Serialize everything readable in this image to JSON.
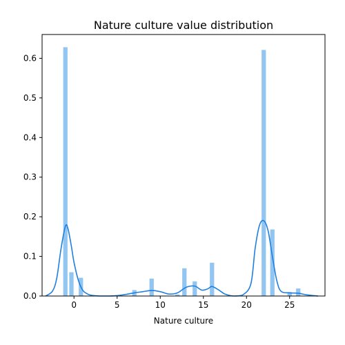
{
  "chart_data": {
    "type": "bar",
    "title": "Nature culture value distribution",
    "xlabel": "Nature culture",
    "ylabel": "",
    "xlim": [
      -3.7,
      29.1
    ],
    "ylim": [
      0,
      0.66
    ],
    "xticks": [
      0,
      5,
      10,
      15,
      20,
      25
    ],
    "yticks": [
      0.0,
      0.1,
      0.2,
      0.3,
      0.4,
      0.5,
      0.6
    ],
    "grid": false,
    "colors": {
      "bar": "#92c5f0",
      "kde": "#1f7fe0",
      "axes": "#000000"
    },
    "bin_width": 0.5,
    "histogram": [
      {
        "x": -1.0,
        "value": 0.628
      },
      {
        "x": -0.3,
        "value": 0.06
      },
      {
        "x": 0.8,
        "value": 0.046
      },
      {
        "x": 7.0,
        "value": 0.015
      },
      {
        "x": 9.0,
        "value": 0.044
      },
      {
        "x": 12.0,
        "value": 0.004
      },
      {
        "x": 12.8,
        "value": 0.07
      },
      {
        "x": 14.0,
        "value": 0.037
      },
      {
        "x": 16.0,
        "value": 0.084
      },
      {
        "x": 22.0,
        "value": 0.621
      },
      {
        "x": 23.0,
        "value": 0.168
      },
      {
        "x": 25.0,
        "value": 0.01
      },
      {
        "x": 26.0,
        "value": 0.019
      }
    ],
    "kde": {
      "x": [
        -3.3,
        -2.5,
        -2.0,
        -1.5,
        -1.0,
        -0.7,
        -0.3,
        0.0,
        0.5,
        1.0,
        1.5,
        2.0,
        3.0,
        4.0,
        5.0,
        6.0,
        7.0,
        8.0,
        9.0,
        10.0,
        11.0,
        12.0,
        13.0,
        14.0,
        14.8,
        15.5,
        16.0,
        16.8,
        17.5,
        18.5,
        19.5,
        20.5,
        21.0,
        21.5,
        22.0,
        22.5,
        23.0,
        23.5,
        24.0,
        25.0,
        26.0,
        27.0,
        28.3
      ],
      "y": [
        0.0,
        0.012,
        0.045,
        0.12,
        0.176,
        0.17,
        0.125,
        0.085,
        0.04,
        0.015,
        0.006,
        0.002,
        0.0,
        0.0,
        0.001,
        0.004,
        0.008,
        0.011,
        0.014,
        0.011,
        0.005,
        0.008,
        0.022,
        0.025,
        0.015,
        0.018,
        0.024,
        0.015,
        0.005,
        0.0,
        0.002,
        0.03,
        0.12,
        0.178,
        0.19,
        0.165,
        0.1,
        0.04,
        0.012,
        0.008,
        0.007,
        0.003,
        0.0
      ]
    }
  }
}
